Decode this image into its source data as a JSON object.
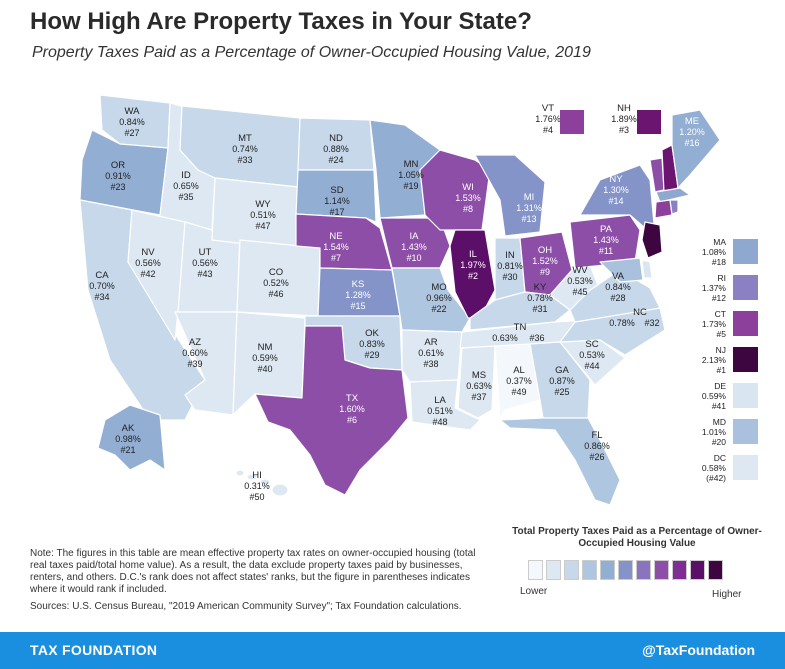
{
  "header": {
    "title": "How High Are Property Taxes in Your State?",
    "subtitle": "Property Taxes Paid as a Percentage of Owner-Occupied Housing Value, 2019"
  },
  "states": {
    "WA": {
      "rate": "0.84%",
      "rank": "#27"
    },
    "OR": {
      "rate": "0.91%",
      "rank": "#23"
    },
    "CA": {
      "rate": "0.70%",
      "rank": "#34"
    },
    "ID": {
      "rate": "0.65%",
      "rank": "#35"
    },
    "NV": {
      "rate": "0.56%",
      "rank": "#42"
    },
    "UT": {
      "rate": "0.56%",
      "rank": "#43"
    },
    "AZ": {
      "rate": "0.60%",
      "rank": "#39"
    },
    "MT": {
      "rate": "0.74%",
      "rank": "#33"
    },
    "WY": {
      "rate": "0.51%",
      "rank": "#47"
    },
    "CO": {
      "rate": "0.52%",
      "rank": "#46"
    },
    "NM": {
      "rate": "0.59%",
      "rank": "#40"
    },
    "ND": {
      "rate": "0.88%",
      "rank": "#24"
    },
    "SD": {
      "rate": "1.14%",
      "rank": "#17"
    },
    "NE": {
      "rate": "1.54%",
      "rank": "#7"
    },
    "KS": {
      "rate": "1.28%",
      "rank": "#15"
    },
    "OK": {
      "rate": "0.83%",
      "rank": "#29"
    },
    "TX": {
      "rate": "1.60%",
      "rank": "#6"
    },
    "MN": {
      "rate": "1.05%",
      "rank": "#19"
    },
    "IA": {
      "rate": "1.43%",
      "rank": "#10"
    },
    "MO": {
      "rate": "0.96%",
      "rank": "#22"
    },
    "AR": {
      "rate": "0.61%",
      "rank": "#38"
    },
    "LA": {
      "rate": "0.51%",
      "rank": "#48"
    },
    "WI": {
      "rate": "1.53%",
      "rank": "#8"
    },
    "IL": {
      "rate": "1.97%",
      "rank": "#2"
    },
    "MI": {
      "rate": "1.31%",
      "rank": "#13"
    },
    "IN": {
      "rate": "0.81%",
      "rank": "#30"
    },
    "OH": {
      "rate": "1.52%",
      "rank": "#9"
    },
    "KY": {
      "rate": "0.78%",
      "rank": "#31"
    },
    "TN": {
      "rate": "0.63%",
      "rank": "#36"
    },
    "MS": {
      "rate": "0.63%",
      "rank": "#37"
    },
    "AL": {
      "rate": "0.37%",
      "rank": "#49"
    },
    "GA": {
      "rate": "0.87%",
      "rank": "#25"
    },
    "FL": {
      "rate": "0.86%",
      "rank": "#26"
    },
    "SC": {
      "rate": "0.53%",
      "rank": "#44"
    },
    "NC": {
      "rate": "0.78%",
      "rank": "#32"
    },
    "VA": {
      "rate": "0.84%",
      "rank": "#28"
    },
    "WV": {
      "rate": "0.53%",
      "rank": "#45"
    },
    "PA": {
      "rate": "1.43%",
      "rank": "#11"
    },
    "NY": {
      "rate": "1.30%",
      "rank": "#14"
    },
    "ME": {
      "rate": "1.20%",
      "rank": "#16"
    },
    "VT": {
      "rate": "1.76%",
      "rank": "#4"
    },
    "NH": {
      "rate": "1.89%",
      "rank": "#3"
    },
    "AK": {
      "rate": "0.98%",
      "rank": "#21"
    },
    "HI": {
      "rate": "0.31%",
      "rank": "#50"
    }
  },
  "callouts": [
    {
      "abbr": "MA",
      "rate": "1.08%",
      "rank": "#18",
      "color": "#8fa8cf"
    },
    {
      "abbr": "RI",
      "rate": "1.37%",
      "rank": "#12",
      "color": "#8a80c2"
    },
    {
      "abbr": "CT",
      "rate": "1.73%",
      "rank": "#5",
      "color": "#8d3f9c"
    },
    {
      "abbr": "NJ",
      "rate": "2.13%",
      "rank": "#1",
      "color": "#3d0640"
    },
    {
      "abbr": "DE",
      "rate": "0.59%",
      "rank": "#41",
      "color": "#d9e6f1"
    },
    {
      "abbr": "MD",
      "rate": "1.01%",
      "rank": "#20",
      "color": "#a9c1dc"
    },
    {
      "abbr": "DC",
      "rate": "0.58%",
      "rank": "(#42)",
      "color": "#dde8f2"
    }
  ],
  "top_callouts": {
    "VT": {
      "abbr": "VT",
      "rate": "1.76%",
      "rank": "#4",
      "color": "#8d3f9c"
    },
    "NH": {
      "abbr": "NH",
      "rate": "1.89%",
      "rank": "#3",
      "color": "#6b1470"
    }
  },
  "colors": {
    "c1": "#f4f8fc",
    "c2": "#dde8f2",
    "c3": "#c6d8ea",
    "c4": "#aec6df",
    "c5": "#93aed3",
    "c6": "#8494c8",
    "c7": "#8a74bd",
    "c8": "#8d4ea8",
    "c9": "#7f2d93",
    "c10": "#5c0f68",
    "c11": "#3d0640",
    "footer": "#1a8fe0"
  },
  "legend": {
    "title": "Total Property Taxes Paid as a Percentage of Owner-Occupied Housing Value",
    "low": "Lower",
    "high": "Higher",
    "scale": [
      "#f4f8fc",
      "#dde8f2",
      "#c6d8ea",
      "#aec6df",
      "#93aed3",
      "#8494c8",
      "#8a74bd",
      "#8d4ea8",
      "#7f2d93",
      "#5c0f68",
      "#3d0640"
    ]
  },
  "note": "Note: The figures in this table are mean effective property tax rates on owner-occupied housing (total real taxes paid/total home value). As a result, the data exclude property taxes paid by businesses, renters, and others. D.C.'s rank does not affect states' ranks, but the figure in parentheses indicates where it would rank if included.",
  "sources": "Sources: U.S. Census Bureau, \"2019 American Community Survey\"; Tax Foundation calculations.",
  "footer": {
    "brand": "TAX FOUNDATION",
    "handle": "@TaxFoundation"
  }
}
